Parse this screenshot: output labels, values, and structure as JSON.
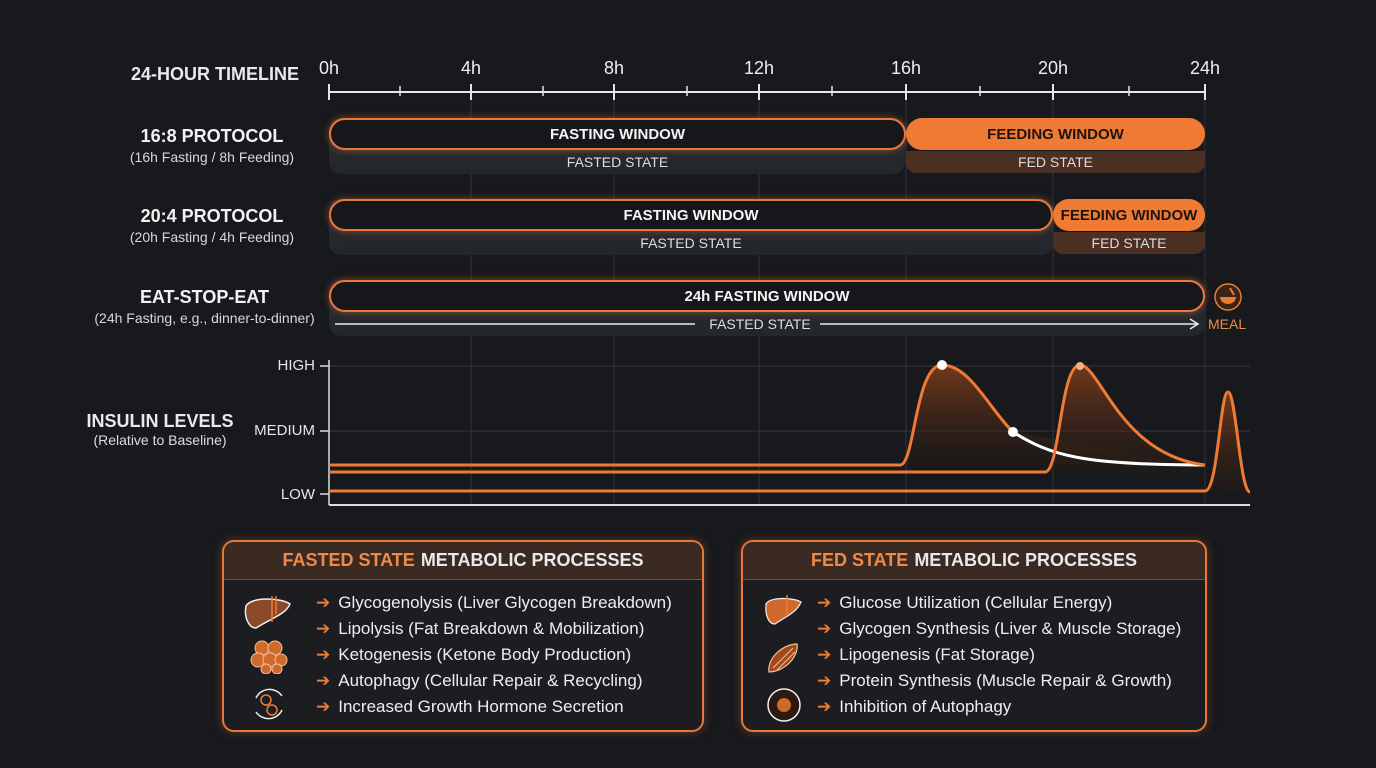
{
  "timeline": {
    "title": "24-HOUR TIMELINE",
    "ticks": [
      "0h",
      "4h",
      "8h",
      "12h",
      "16h",
      "20h",
      "24h"
    ]
  },
  "protocols": [
    {
      "title": "16:8 PROTOCOL",
      "subtitle": "(16h Fasting / 8h Feeding)",
      "fasting_label": "FASTING WINDOW",
      "feeding_label": "FEEDING WINDOW",
      "fasted_state": "FASTED STATE",
      "fed_state": "FED STATE",
      "fasting_hours": 16
    },
    {
      "title": "20:4 PROTOCOL",
      "subtitle": "(20h Fasting / 4h Feeding)",
      "fasting_label": "FASTING WINDOW",
      "feeding_label": "FEEDING WINDOW",
      "fasted_state": "FASTED STATE",
      "fed_state": "FED STATE",
      "fasting_hours": 20
    },
    {
      "title": "EAT-STOP-EAT",
      "subtitle": "(24h Fasting, e.g., dinner-to-dinner)",
      "fasting_label": "24h FASTING WINDOW",
      "fasted_state": "FASTED STATE",
      "meal_label": "MEAL",
      "fasting_hours": 24
    }
  ],
  "insulin": {
    "title": "INSULIN LEVELS",
    "subtitle": "(Relative to Baseline)",
    "levels": [
      "HIGH",
      "MEDIUM",
      "LOW"
    ]
  },
  "panels": {
    "fasted": {
      "title_accent": "FASTED STATE",
      "title_rest": "METABOLIC PROCESSES",
      "items": [
        "Glycogenolysis (Liver Glycogen Breakdown)",
        "Lipolysis (Fat Breakdown & Mobilization)",
        "Ketogenesis (Ketone Body Production)",
        "Autophagy (Cellular Repair & Recycling)",
        "Increased Growth Hormone Secretion"
      ],
      "icons": [
        "liver-icon",
        "fat-cells-icon",
        "autophagy-cycle-icon"
      ]
    },
    "fed": {
      "title_accent": "FED STATE",
      "title_rest": "METABOLIC PROCESSES",
      "items": [
        "Glucose Utilization (Cellular Energy)",
        "Glycogen Synthesis (Liver & Muscle Storage)",
        "Lipogenesis (Fat Storage)",
        "Protein Synthesis (Muscle Repair & Growth)",
        "Inhibition of Autophagy"
      ],
      "icons": [
        "liver-icon",
        "muscle-icon",
        "cell-icon"
      ]
    }
  },
  "colors": {
    "accent": "#ee7a33",
    "background": "#17191d",
    "curve_highlight": "#ffffff"
  }
}
